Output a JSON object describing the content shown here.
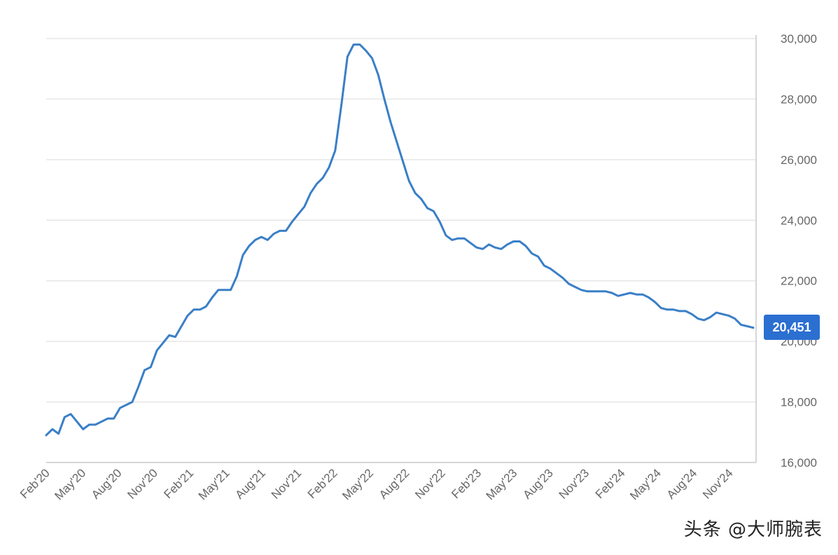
{
  "chart_data": {
    "type": "line",
    "x_tick_labels": [
      "Feb'20",
      "May'20",
      "Aug'20",
      "Nov'20",
      "Feb'21",
      "May'21",
      "Aug'21",
      "Nov'21",
      "Feb'22",
      "May'22",
      "Aug'22",
      "Nov'22",
      "Feb'23",
      "May'23",
      "Aug'23",
      "Nov'23",
      "Feb'24",
      "May'24",
      "Aug'24",
      "Nov'24"
    ],
    "y_tick_labels": [
      "16,000",
      "18,000",
      "20,000",
      "22,000",
      "24,000",
      "26,000",
      "28,000",
      "30,000"
    ],
    "y_ticks": [
      16000,
      18000,
      20000,
      22000,
      24000,
      26000,
      28000,
      30000
    ],
    "ylim": [
      16000,
      30000
    ],
    "x_start": "Feb'20",
    "x_end": "Jan'25",
    "grid": true,
    "y_axis_side": "right",
    "last_value_label": "20,451",
    "series_color": "#3a7fc7",
    "badge_color": "#2b6fd1",
    "series": [
      {
        "values": [
          16900,
          17100,
          16950,
          17500,
          17600,
          17350,
          17100,
          17250,
          17250,
          17350,
          17450,
          17450,
          17800,
          17900,
          18000,
          18500,
          19050,
          19150,
          19700,
          19950,
          20200,
          20150,
          20500,
          20850,
          21050,
          21050,
          21150,
          21450,
          21700,
          21700,
          21700,
          22150,
          22850,
          23150,
          23350,
          23450,
          23350,
          23550,
          23650,
          23650,
          23950,
          24200,
          24450,
          24900,
          25200,
          25400,
          25750,
          26300,
          27800,
          29400,
          29800,
          29800,
          29600,
          29350,
          28800,
          28000,
          27250,
          26600,
          25950,
          25300,
          24900,
          24700,
          24400,
          24300,
          23950,
          23500,
          23350,
          23400,
          23400,
          23250,
          23100,
          23050,
          23200,
          23100,
          23050,
          23200,
          23300,
          23300,
          23150,
          22900,
          22800,
          22500,
          22400,
          22250,
          22100,
          21900,
          21800,
          21700,
          21650,
          21650,
          21650,
          21650,
          21600,
          21500,
          21550,
          21600,
          21550,
          21550,
          21450,
          21300,
          21100,
          21050,
          21050,
          21000,
          21000,
          20900,
          20750,
          20700,
          20800,
          20950,
          20900,
          20850,
          20750,
          20550,
          20500,
          20451
        ]
      }
    ]
  },
  "watermark": "头条 @大师腕表"
}
